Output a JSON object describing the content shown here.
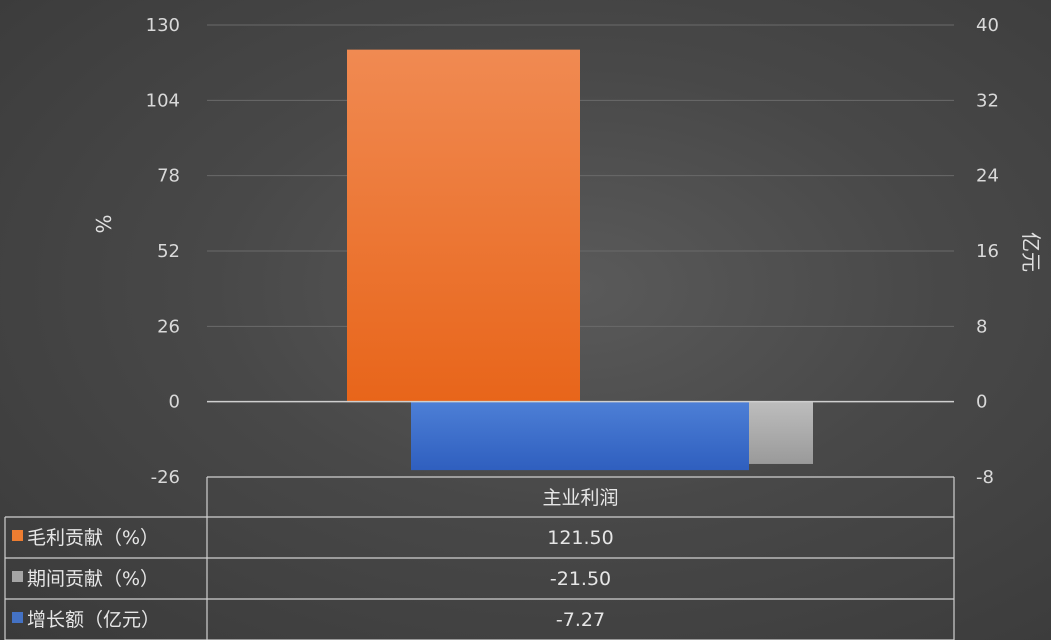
{
  "chart_data": {
    "type": "bar",
    "categories": [
      "主业利润"
    ],
    "y_left": {
      "label": "%",
      "ticks": [
        130,
        104,
        78,
        52,
        26,
        0,
        -26
      ],
      "range": [
        -26,
        130
      ]
    },
    "y_right": {
      "label": "亿元",
      "ticks": [
        40,
        32,
        24,
        16,
        8,
        0,
        -8
      ],
      "range": [
        -8,
        40
      ]
    },
    "grid": true,
    "legend": "table-bottom",
    "series": [
      {
        "name": "毛利贡献（%）",
        "axis": "left",
        "values": [
          121.5
        ],
        "display": [
          "121.50"
        ],
        "color": "#ed7d31"
      },
      {
        "name": "期间贡献（%）",
        "axis": "left",
        "values": [
          -21.5
        ],
        "display": [
          "-21.50"
        ],
        "color": "#a5a5a5"
      },
      {
        "name": "增长额（亿元）",
        "axis": "right",
        "values": [
          -7.27
        ],
        "display": [
          "-7.27"
        ],
        "color": "#4472c4"
      }
    ]
  }
}
